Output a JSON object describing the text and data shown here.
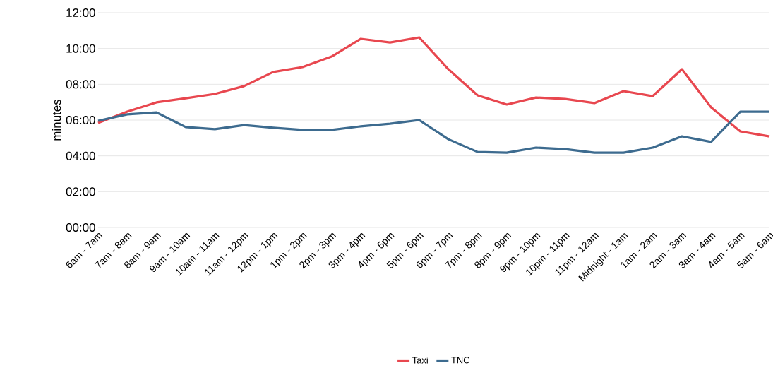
{
  "chart_data": {
    "type": "line",
    "ylabel": "minutes",
    "categories": [
      "6am - 7am",
      "7am - 8am",
      "8am - 9am",
      "9am - 10am",
      "10am - 11am",
      "11am - 12pm",
      "12pm - 1pm",
      "1pm - 2pm",
      "2pm - 3pm",
      "3pm - 4pm",
      "4pm - 5pm",
      "5pm - 6pm",
      "6pm - 7pm",
      "7pm - 8pm",
      "8pm - 9pm",
      "9pm - 10pm",
      "10pm - 11pm",
      "11pm - 12am",
      "Midnight - 1am",
      "1am - 2am",
      "2am - 3am",
      "3am - 4am",
      "4am - 5am",
      "5am - 6am"
    ],
    "series": [
      {
        "name": "Taxi",
        "color": "#e8474f",
        "values": [
          5.84,
          6.47,
          6.99,
          7.22,
          7.46,
          7.9,
          8.69,
          8.96,
          9.55,
          10.54,
          10.34,
          10.62,
          8.84,
          7.38,
          6.87,
          7.26,
          7.18,
          6.95,
          7.62,
          7.34,
          8.84,
          6.71,
          5.37,
          5.09
        ]
      },
      {
        "name": "TNC",
        "color": "#3d6b8f",
        "values": [
          5.96,
          6.32,
          6.43,
          5.61,
          5.49,
          5.72,
          5.57,
          5.45,
          5.45,
          5.65,
          5.8,
          6.0,
          4.93,
          4.22,
          4.18,
          4.46,
          4.38,
          4.18,
          4.18,
          4.46,
          5.09,
          4.78,
          6.47,
          6.47
        ]
      }
    ],
    "ylim": [
      0,
      12
    ],
    "yticks": [
      {
        "value": 0,
        "label": "00:00"
      },
      {
        "value": 2,
        "label": "02:00"
      },
      {
        "value": 4,
        "label": "04:00"
      },
      {
        "value": 6,
        "label": "06:00"
      },
      {
        "value": 8,
        "label": "08:00"
      },
      {
        "value": 10,
        "label": "10:00"
      },
      {
        "value": 12,
        "label": "12:00"
      }
    ],
    "grid": "y",
    "legend": "bottom",
    "marker": "none",
    "line_style": "solid"
  }
}
